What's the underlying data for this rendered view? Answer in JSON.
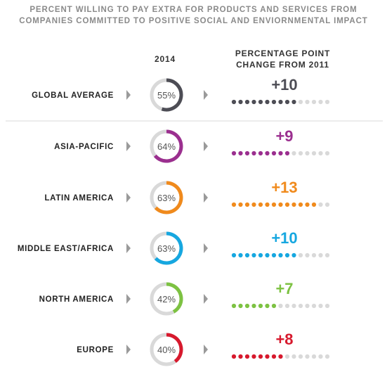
{
  "header": {
    "title_line1": "PERCENT WILLING TO PAY EXTRA FOR PRODUCTS AND SERVICES FROM",
    "title_line2": "COMPANIES COMMITTED TO POSITIVE SOCIAL AND ENVIORNMENTAL IMPACT",
    "col_2014": "2014",
    "col_change_line1": "PERCENTAGE POINT",
    "col_change_line2": "CHANGE FROM 2011"
  },
  "chart_data": {
    "type": "table",
    "title": "PERCENT WILLING TO PAY EXTRA FOR PRODUCTS AND SERVICES FROM COMPANIES COMMITTED TO POSITIVE SOCIAL AND ENVIORNMENTAL IMPACT",
    "columns": [
      "2014",
      "PERCENTAGE POINT CHANGE FROM 2011"
    ],
    "dots_total": 15,
    "empty_color": "#d9d9d9",
    "rows": [
      {
        "region": "GLOBAL AVERAGE",
        "pct_2014": 55,
        "pct_label": "55%",
        "change": 10,
        "change_label": "+10",
        "color": "#4d4d55"
      },
      {
        "region": "ASIA-PACIFIC",
        "pct_2014": 64,
        "pct_label": "64%",
        "change": 9,
        "change_label": "+9",
        "color": "#9b2f8f"
      },
      {
        "region": "LATIN AMERICA",
        "pct_2014": 63,
        "pct_label": "63%",
        "change": 13,
        "change_label": "+13",
        "color": "#f08a1c"
      },
      {
        "region": "MIDDLE EAST/AFRICA",
        "pct_2014": 63,
        "pct_label": "63%",
        "change": 10,
        "change_label": "+10",
        "color": "#16a7e0"
      },
      {
        "region": "NORTH AMERICA",
        "pct_2014": 42,
        "pct_label": "42%",
        "change": 7,
        "change_label": "+7",
        "color": "#7dc242"
      },
      {
        "region": "EUROPE",
        "pct_2014": 40,
        "pct_label": "40%",
        "change": 8,
        "change_label": "+8",
        "color": "#d7192d"
      }
    ]
  }
}
